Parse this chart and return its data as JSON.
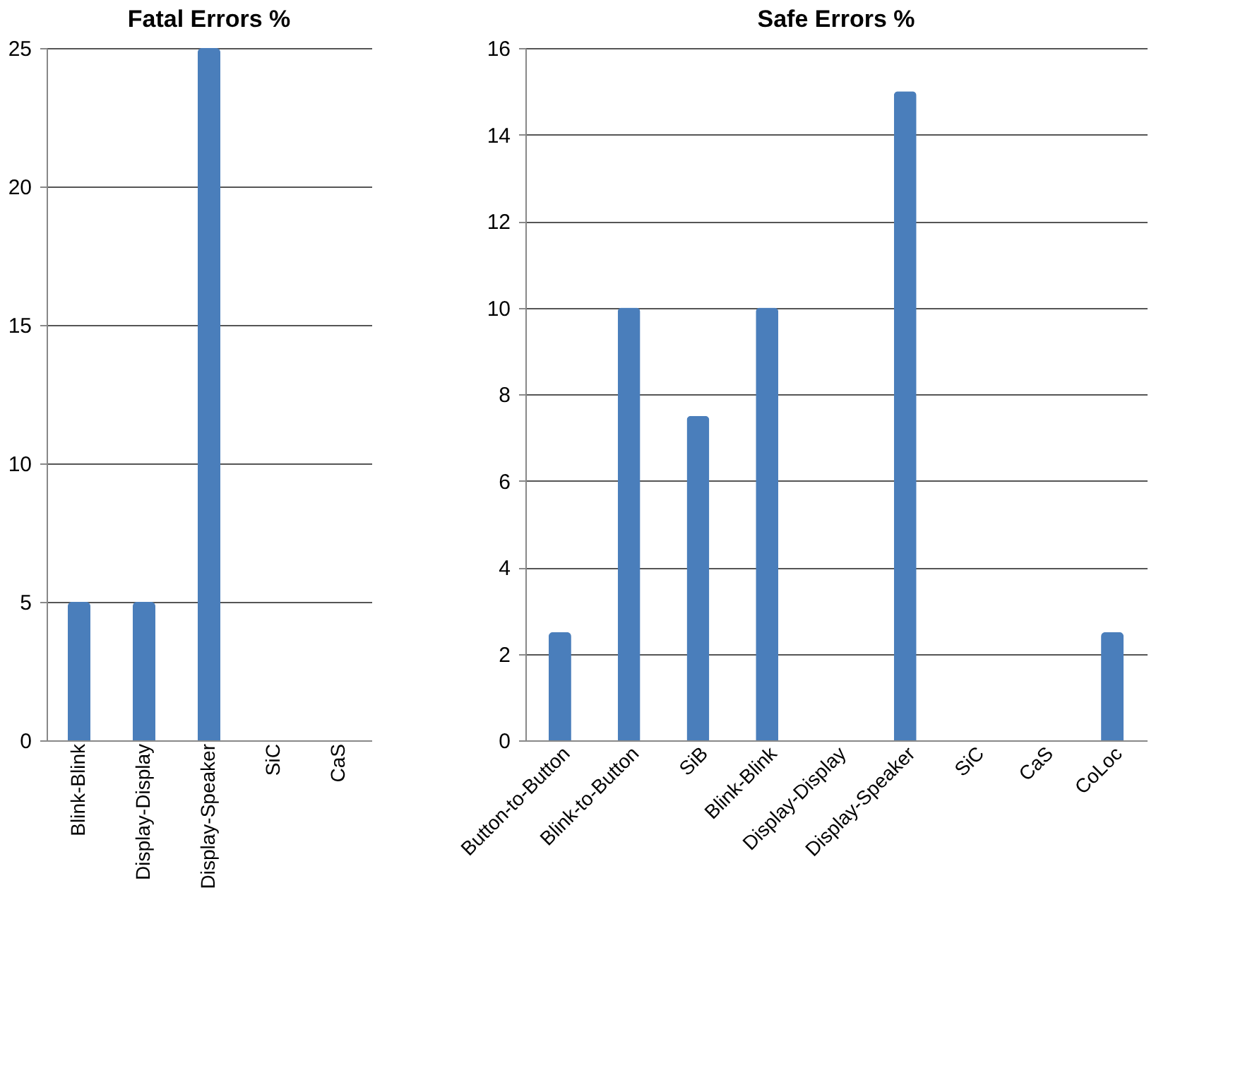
{
  "chart_data": [
    {
      "type": "bar",
      "title": "Fatal Errors %",
      "categories": [
        "Blink-Blink",
        "Display-Display",
        "Display-Speaker",
        "SiC",
        "CaS"
      ],
      "series": [
        {
          "color": "#4a7ebb",
          "values": [
            5,
            5,
            25,
            0,
            0
          ]
        }
      ],
      "ylim": [
        0,
        25
      ],
      "yticks": [
        0,
        5,
        10,
        15,
        20,
        25
      ],
      "grid": "y",
      "legend": false
    },
    {
      "type": "bar",
      "title": "Safe Errors %",
      "categories": [
        "Button-to-Button",
        "Blink-to-Button",
        "SiB",
        "Blink-Blink",
        "Display-Display",
        "Display-Speaker",
        "SiC",
        "CaS",
        "CoLoc"
      ],
      "series": [
        {
          "color": "#4a7ebb",
          "values": [
            2.5,
            10,
            7.5,
            10,
            0,
            15,
            0,
            0,
            2.5
          ]
        }
      ],
      "ylim": [
        0,
        16
      ],
      "yticks": [
        0,
        2,
        4,
        6,
        8,
        10,
        12,
        14,
        16
      ],
      "grid": "y",
      "legend": false
    }
  ]
}
